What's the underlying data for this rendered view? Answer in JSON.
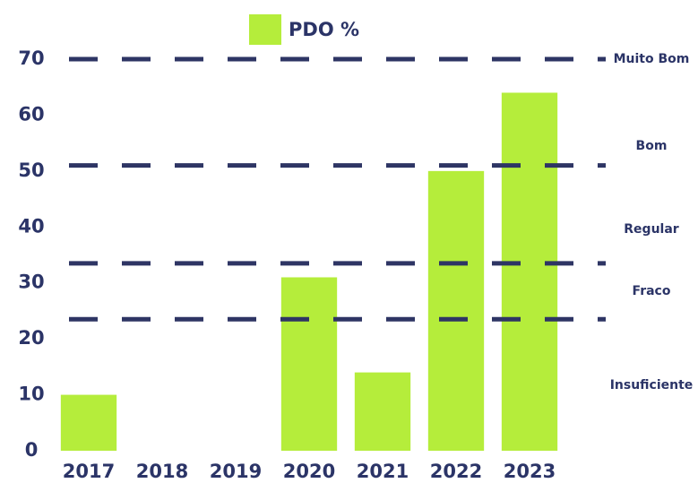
{
  "chart_data": {
    "type": "bar",
    "categories": [
      "2017",
      "2018",
      "2019",
      "2020",
      "2021",
      "2022",
      "2023"
    ],
    "series": [
      {
        "name": "PDO %",
        "color": "#b5ed3b",
        "values": [
          10,
          0,
          0,
          31,
          14,
          50,
          64
        ]
      }
    ],
    "ylim": [
      0,
      70
    ],
    "yticks": [
      0,
      10,
      20,
      30,
      40,
      50,
      60,
      70
    ],
    "grid": false,
    "legend": "top",
    "thresholds": {
      "color": "#2e3564",
      "values": [
        70,
        51,
        33.5,
        23.5
      ]
    },
    "annotations": [
      {
        "text": "Muito Bom",
        "y": 70
      },
      {
        "text": "Bom",
        "y": 54.5
      },
      {
        "text": "Regular",
        "y": 39.6
      },
      {
        "text": "Fraco",
        "y": 28.5
      },
      {
        "text": "Insuficiente",
        "y": 11.7
      }
    ]
  }
}
